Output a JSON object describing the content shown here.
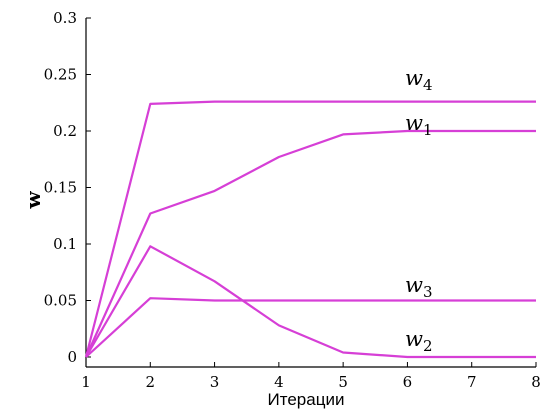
{
  "chart_data": {
    "type": "line",
    "title": "",
    "xlabel": "Итерации",
    "ylabel": "w",
    "x": [
      1,
      2,
      3,
      4,
      5,
      6,
      7,
      8
    ],
    "xlim": [
      1,
      8
    ],
    "ylim": [
      0,
      0.3
    ],
    "xticks": [
      1,
      2,
      3,
      4,
      5,
      6,
      7,
      8
    ],
    "yticks": [
      0,
      0.05,
      0.1,
      0.15,
      0.2,
      0.25,
      0.3
    ],
    "ytick_labels": [
      "0",
      "0.05",
      "0.1",
      "0.15",
      "0.2",
      "0.25",
      "0.3"
    ],
    "line_color": "#d63fd6",
    "grid": false,
    "series": [
      {
        "name": "w4",
        "label_base": "w",
        "label_sub": "4",
        "values": [
          0,
          0.224,
          0.226,
          0.226,
          0.226,
          0.226,
          0.226,
          0.226
        ]
      },
      {
        "name": "w1",
        "label_base": "w",
        "label_sub": "1",
        "values": [
          0,
          0.127,
          0.147,
          0.177,
          0.197,
          0.2,
          0.2,
          0.2
        ]
      },
      {
        "name": "w3",
        "label_base": "w",
        "label_sub": "3",
        "values": [
          0,
          0.052,
          0.05,
          0.05,
          0.05,
          0.05,
          0.05,
          0.05
        ]
      },
      {
        "name": "w2",
        "label_base": "w",
        "label_sub": "2",
        "values": [
          0,
          0.098,
          0.067,
          0.028,
          0.004,
          0.0,
          0.0,
          0.0
        ]
      }
    ]
  }
}
